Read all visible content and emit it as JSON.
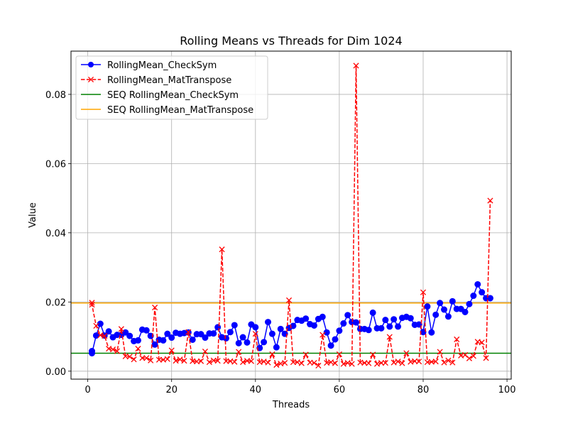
{
  "chart_data": {
    "type": "line",
    "title": "Rolling Means vs Threads for Dim 1024",
    "xlabel": "Threads",
    "ylabel": "Value",
    "xlim": [
      -4,
      101
    ],
    "ylim": [
      -0.0023,
      0.0925
    ],
    "xticks": [
      0,
      20,
      40,
      60,
      80,
      100
    ],
    "yticks": [
      0.0,
      0.02,
      0.04,
      0.06,
      0.08
    ],
    "xtick_labels": [
      "0",
      "20",
      "40",
      "60",
      "80",
      "100"
    ],
    "ytick_labels": [
      "0.00",
      "0.02",
      "0.04",
      "0.06",
      "0.08"
    ],
    "grid": true,
    "legend_position": "top-left",
    "x": [
      1,
      1,
      2,
      3,
      4,
      5,
      6,
      7,
      8,
      9,
      10,
      11,
      12,
      13,
      14,
      15,
      16,
      17,
      18,
      19,
      20,
      21,
      22,
      23,
      24,
      25,
      26,
      27,
      28,
      29,
      30,
      31,
      32,
      33,
      34,
      35,
      36,
      37,
      38,
      39,
      40,
      41,
      42,
      43,
      44,
      45,
      46,
      47,
      48,
      49,
      50,
      51,
      52,
      53,
      54,
      55,
      56,
      57,
      58,
      59,
      60,
      61,
      62,
      63,
      64,
      65,
      66,
      67,
      68,
      69,
      70,
      71,
      72,
      73,
      74,
      75,
      76,
      77,
      78,
      79,
      80,
      81,
      82,
      83,
      84,
      85,
      86,
      87,
      88,
      89,
      90,
      91,
      92,
      93,
      94,
      95,
      96
    ],
    "series": [
      {
        "name": "RollingMean_CheckSym",
        "color": "#0000ff",
        "linestyle": "solid",
        "marker": "circle",
        "values": [
          0.0058,
          0.0052,
          0.0103,
          0.0137,
          0.0103,
          0.0115,
          0.0098,
          0.0105,
          0.0105,
          0.0112,
          0.0102,
          0.0087,
          0.0089,
          0.012,
          0.0118,
          0.0102,
          0.0077,
          0.0091,
          0.0089,
          0.0108,
          0.0097,
          0.0111,
          0.0108,
          0.011,
          0.0112,
          0.0091,
          0.0107,
          0.0107,
          0.0097,
          0.0109,
          0.0109,
          0.0127,
          0.0098,
          0.0095,
          0.0113,
          0.0133,
          0.0081,
          0.0098,
          0.0083,
          0.0135,
          0.0127,
          0.0067,
          0.0084,
          0.0142,
          0.0108,
          0.0069,
          0.0122,
          0.0108,
          0.0125,
          0.0131,
          0.0148,
          0.0146,
          0.0152,
          0.0136,
          0.0132,
          0.0151,
          0.0157,
          0.0112,
          0.0074,
          0.0092,
          0.0117,
          0.0138,
          0.0162,
          0.0142,
          0.0141,
          0.0122,
          0.0122,
          0.0119,
          0.0169,
          0.0124,
          0.0124,
          0.0148,
          0.0129,
          0.015,
          0.0129,
          0.0154,
          0.0157,
          0.0153,
          0.0134,
          0.0135,
          0.0113,
          0.0187,
          0.0112,
          0.0163,
          0.0197,
          0.0178,
          0.0158,
          0.0202,
          0.018,
          0.018,
          0.0171,
          0.0194,
          0.0218,
          0.0251,
          0.0228,
          0.0211,
          0.0211
        ]
      },
      {
        "name": "RollingMean_MatTranspose",
        "color": "#ff0000",
        "linestyle": "dashed",
        "marker": "x",
        "values": [
          0.0198,
          0.0192,
          0.0131,
          0.0104,
          0.0102,
          0.0065,
          0.0063,
          0.0058,
          0.0122,
          0.0043,
          0.0042,
          0.0034,
          0.0065,
          0.0038,
          0.0038,
          0.0031,
          0.0184,
          0.0033,
          0.0033,
          0.0035,
          0.006,
          0.003,
          0.0034,
          0.003,
          0.0113,
          0.0029,
          0.0028,
          0.0029,
          0.0057,
          0.0026,
          0.0031,
          0.003,
          0.0352,
          0.0029,
          0.0029,
          0.0027,
          0.0056,
          0.0026,
          0.003,
          0.0029,
          0.0108,
          0.0026,
          0.0028,
          0.0025,
          0.0049,
          0.0018,
          0.0022,
          0.0024,
          0.0205,
          0.0026,
          0.0026,
          0.0023,
          0.0048,
          0.0025,
          0.0024,
          0.0016,
          0.0105,
          0.0024,
          0.0026,
          0.0023,
          0.0049,
          0.0021,
          0.0024,
          0.0021,
          0.0883,
          0.0025,
          0.0024,
          0.0023,
          0.0048,
          0.0021,
          0.0024,
          0.0024,
          0.0099,
          0.0025,
          0.0028,
          0.0023,
          0.0052,
          0.0027,
          0.0029,
          0.0028,
          0.0228,
          0.0026,
          0.0027,
          0.0028,
          0.0056,
          0.0025,
          0.0031,
          0.0025,
          0.0092,
          0.0045,
          0.0047,
          0.0037,
          0.0044,
          0.0085,
          0.0083,
          0.0038,
          0.0493
        ]
      }
    ],
    "hlines": [
      {
        "name": "SEQ RollingMean_CheckSym",
        "color": "#008000",
        "y": 0.0052
      },
      {
        "name": "SEQ RollingMean_MatTranspose",
        "color": "#ffa500",
        "y": 0.0197
      }
    ]
  }
}
